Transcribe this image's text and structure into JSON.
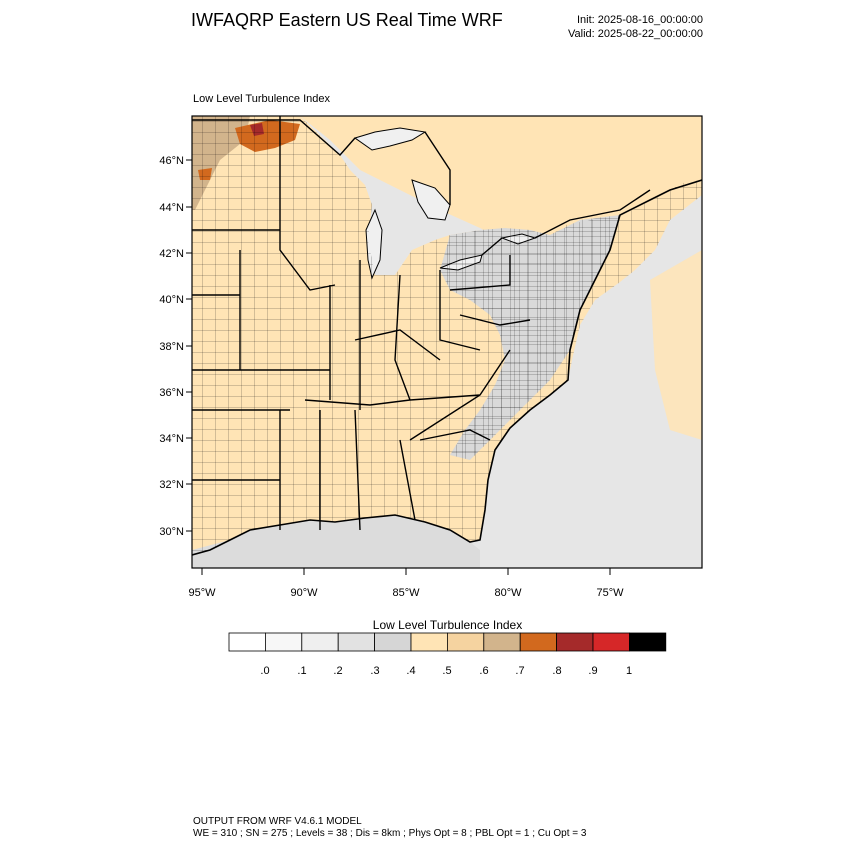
{
  "header": {
    "title": "IWFAQRP Eastern US Real Time WRF",
    "init": "Init: 2025-08-16_00:00:00",
    "valid": "Valid: 2025-08-22_00:00:00"
  },
  "map": {
    "subtitle": "Low Level Turbulence Index",
    "lat_labels": [
      "46°N",
      "44°N",
      "42°N",
      "40°N",
      "38°N",
      "36°N",
      "34°N",
      "32°N",
      "30°N"
    ],
    "lon_labels": [
      "95°W",
      "90°W",
      "85°W",
      "80°W",
      "75°W"
    ]
  },
  "colorbar": {
    "title": "Low Level Turbulence Index",
    "colors": [
      "#ffffff",
      "#f7f7f7",
      "#efefef",
      "#e2e2e2",
      "#d6d6d6",
      "#ffe4b5",
      "#f5d3a0",
      "#d2b48c",
      "#d2691e",
      "#a52a2a",
      "#d62728",
      "#000000"
    ],
    "tick_labels": [
      ".0",
      ".1",
      ".2",
      ".3",
      ".4",
      ".5",
      ".6",
      ".7",
      ".8",
      ".9",
      "1"
    ]
  },
  "footer": {
    "line1": "OUTPUT FROM WRF V4.6.1 MODEL",
    "line2": "WE = 310 ; SN = 275 ; Levels = 38 ; Dis = 8km ; Phys Opt = 8 ; PBL Opt = 1 ; Cu Opt = 3"
  }
}
